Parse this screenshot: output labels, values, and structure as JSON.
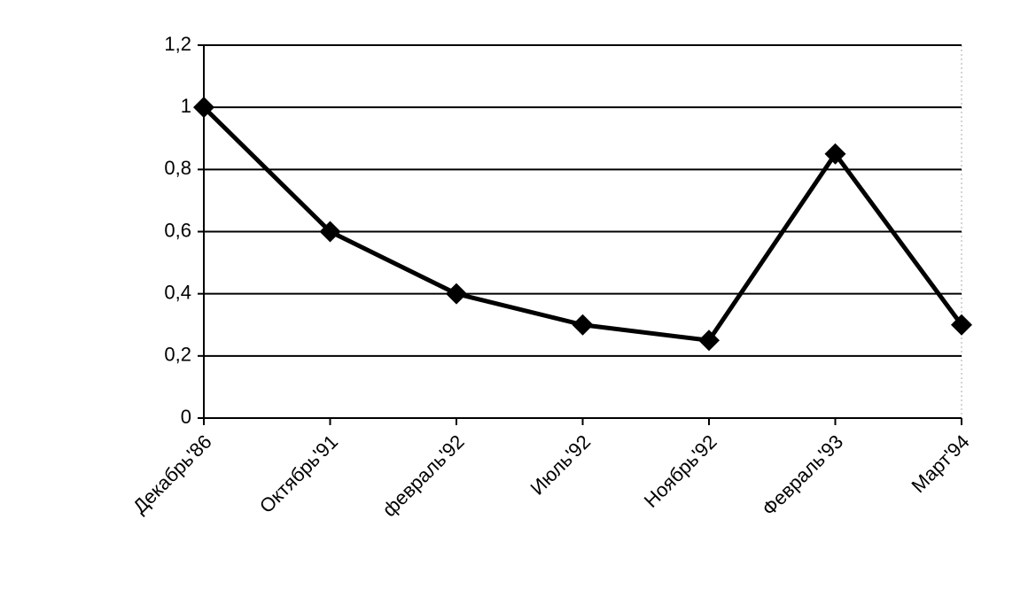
{
  "chart_data": {
    "type": "line",
    "categories": [
      "Декабрь'86",
      "Октябрь'91",
      "февраль'92",
      "Июль'92",
      "Ноябрь'92",
      "Февраль'93",
      "Март'94"
    ],
    "values": [
      1,
      0.6,
      0.4,
      0.3,
      0.25,
      0.85,
      0.3
    ],
    "color": "#000000",
    "ylim": [
      0,
      1.2
    ],
    "yticks": [
      0,
      {
        "value": 0.2,
        "label": "0,2"
      },
      {
        "value": 0.4,
        "label": "0,4"
      },
      {
        "value": 0.6,
        "label": "0,6"
      },
      {
        "value": 0.8,
        "label": "0,8"
      },
      1,
      {
        "value": 1.2,
        "label": "1,2"
      }
    ],
    "grid": true
  }
}
